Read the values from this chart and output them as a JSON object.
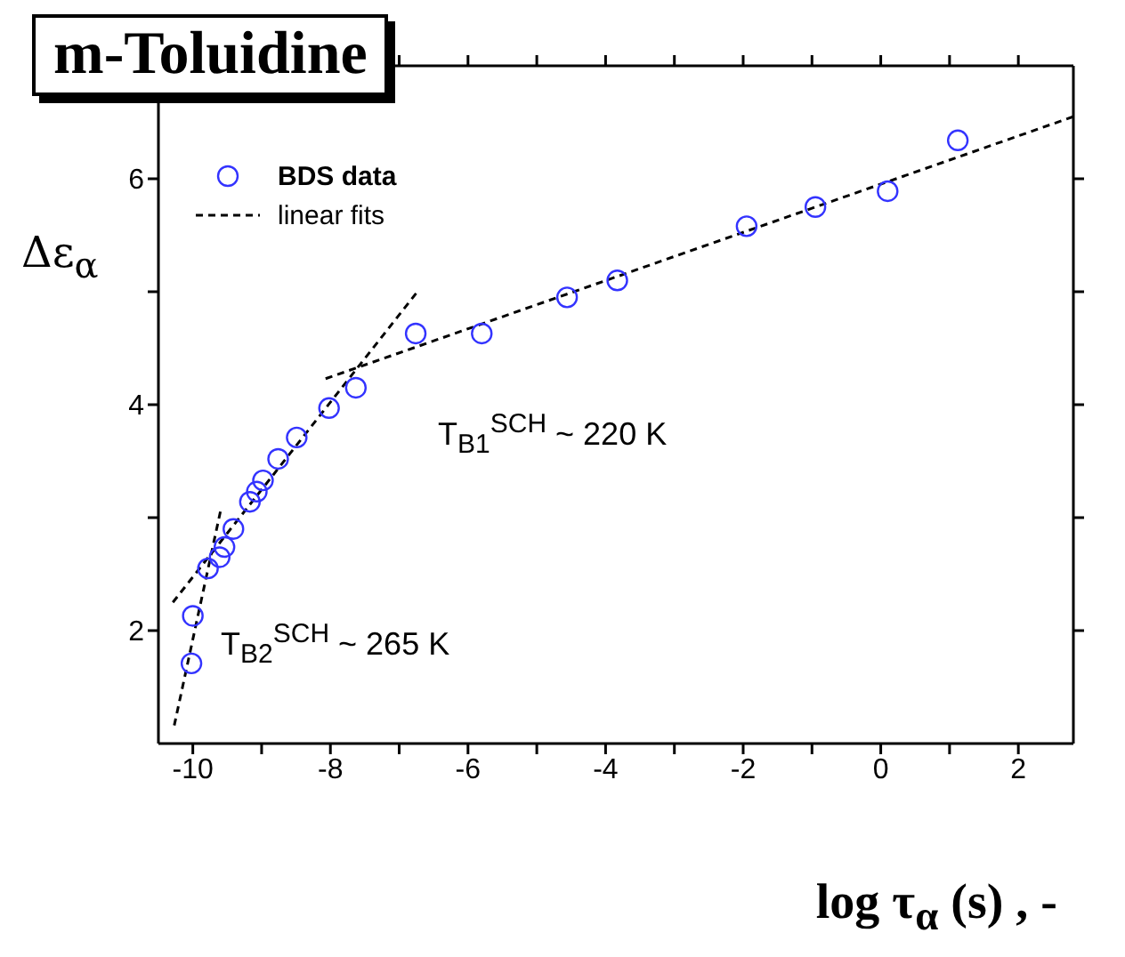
{
  "chart_data": {
    "type": "scatter",
    "title": "m-Toluidine",
    "xlabel": "log τ$_{α}$ (s) , -",
    "ylabel": "Δε$_{α}$",
    "xlim": [
      -10.5,
      2.8
    ],
    "ylim": [
      1,
      7
    ],
    "xticks": [
      -10,
      {
        "value": -9,
        "label": null
      },
      -8,
      {
        "value": -7,
        "label": null
      },
      -6,
      {
        "value": -5,
        "label": null
      },
      -4,
      {
        "value": -3,
        "label": null
      },
      -2,
      {
        "value": -1,
        "label": null
      },
      0,
      {
        "value": 1,
        "label": null
      },
      2
    ],
    "yticks": [
      2,
      {
        "value": 3,
        "label": null
      },
      4,
      {
        "value": 5,
        "label": null
      },
      6
    ],
    "legend": "top left",
    "series": [
      {
        "name": "BDS data",
        "marker": "circle",
        "color": "#3333ff",
        "x": [
          -10.02,
          -10.0,
          -9.78,
          -9.61,
          -9.54,
          -9.41,
          -9.17,
          -9.07,
          -8.98,
          -8.76,
          -8.49,
          -8.02,
          -7.63,
          -6.76,
          -5.8,
          -4.56,
          -3.83,
          -1.95,
          -0.95,
          0.1,
          1.12
        ],
        "values": [
          1.71,
          2.13,
          2.55,
          2.65,
          2.74,
          2.9,
          3.14,
          3.23,
          3.33,
          3.52,
          3.71,
          3.97,
          4.15,
          4.63,
          4.63,
          4.95,
          5.1,
          5.58,
          5.75,
          5.89,
          6.34
        ]
      },
      {
        "name": "linear fits",
        "type": "line",
        "line_style": "dashed",
        "marker": "none",
        "color": "#000000",
        "x": [
          -8.07,
          2.8
        ],
        "values": [
          4.23,
          6.55
        ]
      },
      {
        "type": "line",
        "line_style": "dashed",
        "marker": "none",
        "color": "#000000",
        "x": [
          -10.29,
          -6.71
        ],
        "values": [
          2.25,
          5.02
        ]
      },
      {
        "type": "line",
        "line_style": "dashed",
        "marker": "none",
        "color": "#000000",
        "x": [
          -10.27,
          -9.59
        ],
        "values": [
          1.16,
          3.08
        ]
      }
    ],
    "annotations": [
      "T$_{B1}$$^{SCH}$ ~ 220 K",
      "T$_{B2}$$^{SCH}$ ~ 265 K"
    ]
  }
}
